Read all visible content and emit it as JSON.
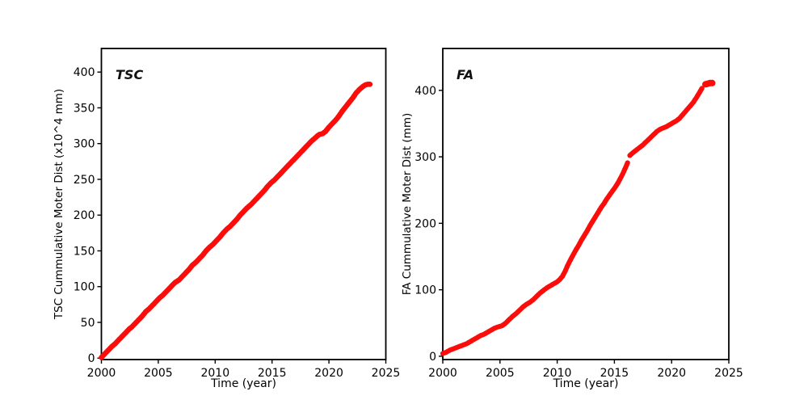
{
  "figure": {
    "background": "#ffffff",
    "axis_color": "#000000",
    "text_color": "#000000"
  },
  "chart_data": [
    {
      "type": "scatter",
      "title": "TSC",
      "xlabel": "Time (year)",
      "ylabel": "TSC Cummulative Moter Dist (x10^4 mm)",
      "color": "#fa0d0a",
      "grid": false,
      "legend": null,
      "xlim": [
        2000,
        2025
      ],
      "ylim": [
        -2,
        433
      ],
      "xticks": [
        2000,
        2005,
        2010,
        2015,
        2020,
        2025
      ],
      "yticks": [
        0,
        50,
        100,
        150,
        200,
        250,
        300,
        350,
        400
      ],
      "series": [
        {
          "name": "TSC",
          "segments": [
            {
              "marker_px": 6.6,
              "points": [
                [
                  2000.0,
                  1
                ],
                [
                  2000.3,
                  6
                ],
                [
                  2000.6,
                  11
                ],
                [
                  2000.9,
                  16
                ],
                [
                  2001.2,
                  20
                ],
                [
                  2001.5,
                  25
                ],
                [
                  2001.8,
                  30
                ],
                [
                  2002.1,
                  35
                ],
                [
                  2002.4,
                  40
                ],
                [
                  2002.7,
                  44
                ],
                [
                  2003.0,
                  49
                ],
                [
                  2003.3,
                  54
                ],
                [
                  2003.6,
                  59
                ],
                [
                  2003.9,
                  65
                ],
                [
                  2004.2,
                  69
                ],
                [
                  2004.5,
                  74
                ],
                [
                  2004.8,
                  79
                ],
                [
                  2005.1,
                  84
                ],
                [
                  2005.4,
                  88
                ],
                [
                  2005.7,
                  93
                ],
                [
                  2006.0,
                  98
                ],
                [
                  2006.3,
                  103
                ],
                [
                  2006.5,
                  106
                ],
                [
                  2006.8,
                  109
                ],
                [
                  2007.1,
                  114
                ],
                [
                  2007.4,
                  119
                ],
                [
                  2007.7,
                  124
                ],
                [
                  2008.0,
                  130
                ],
                [
                  2008.3,
                  134
                ],
                [
                  2008.6,
                  139
                ],
                [
                  2008.9,
                  144
                ],
                [
                  2009.2,
                  150
                ],
                [
                  2009.5,
                  155
                ],
                [
                  2009.8,
                  159
                ],
                [
                  2010.1,
                  164
                ],
                [
                  2010.4,
                  169
                ],
                [
                  2010.7,
                  175
                ],
                [
                  2011.0,
                  180
                ],
                [
                  2011.3,
                  184
                ],
                [
                  2011.6,
                  189
                ],
                [
                  2011.9,
                  194
                ],
                [
                  2012.2,
                  200
                ],
                [
                  2012.5,
                  205
                ],
                [
                  2012.8,
                  210
                ],
                [
                  2013.1,
                  214
                ],
                [
                  2013.4,
                  219
                ],
                [
                  2013.7,
                  224
                ],
                [
                  2014.0,
                  229
                ],
                [
                  2014.3,
                  234
                ],
                [
                  2014.6,
                  240
                ],
                [
                  2014.9,
                  245
                ],
                [
                  2015.2,
                  249
                ],
                [
                  2015.5,
                  254
                ],
                [
                  2015.8,
                  259
                ],
                [
                  2016.1,
                  264
                ],
                [
                  2016.4,
                  269
                ],
                [
                  2016.7,
                  274
                ],
                [
                  2017.0,
                  279
                ],
                [
                  2017.3,
                  284
                ],
                [
                  2017.6,
                  289
                ],
                [
                  2017.9,
                  294
                ],
                [
                  2018.2,
                  299
                ],
                [
                  2018.5,
                  304
                ],
                [
                  2018.8,
                  308
                ],
                [
                  2019.0,
                  311
                ],
                [
                  2019.2,
                  313
                ],
                [
                  2019.45,
                  314
                ],
                [
                  2019.7,
                  317
                ],
                [
                  2020.0,
                  323
                ],
                [
                  2020.3,
                  328
                ],
                [
                  2020.6,
                  333
                ],
                [
                  2020.9,
                  339
                ],
                [
                  2021.2,
                  346
                ],
                [
                  2021.5,
                  352
                ],
                [
                  2021.8,
                  358
                ],
                [
                  2022.1,
                  364
                ],
                [
                  2022.4,
                  371
                ],
                [
                  2022.7,
                  376
                ],
                [
                  2023.0,
                  380
                ],
                [
                  2023.2,
                  382
                ],
                [
                  2023.4,
                  383
                ],
                [
                  2023.6,
                  383
                ]
              ]
            }
          ]
        }
      ]
    },
    {
      "type": "scatter",
      "title": "FA",
      "xlabel": "Time (year)",
      "ylabel": "FA Cummulative Moter Dist (mm)",
      "color": "#fa0d0a",
      "grid": false,
      "legend": null,
      "xlim": [
        2000,
        2025
      ],
      "ylim": [
        -5,
        463
      ],
      "xticks": [
        2000,
        2005,
        2010,
        2015,
        2020,
        2025
      ],
      "yticks": [
        0,
        100,
        200,
        300,
        400
      ],
      "series": [
        {
          "name": "FA",
          "segments": [
            {
              "marker_px": 6.2,
              "points": [
                [
                  2000.0,
                  4
                ],
                [
                  2000.3,
                  6
                ],
                [
                  2000.6,
                  9
                ],
                [
                  2000.9,
                  11
                ],
                [
                  2001.2,
                  13
                ],
                [
                  2001.5,
                  15
                ],
                [
                  2001.8,
                  17
                ],
                [
                  2002.1,
                  19
                ],
                [
                  2002.4,
                  22
                ],
                [
                  2002.7,
                  25
                ],
                [
                  2003.0,
                  28
                ],
                [
                  2003.3,
                  31
                ],
                [
                  2003.6,
                  33
                ],
                [
                  2003.9,
                  36
                ],
                [
                  2004.2,
                  39
                ],
                [
                  2004.5,
                  42
                ],
                [
                  2004.8,
                  44
                ],
                [
                  2005.0,
                  45
                ],
                [
                  2005.2,
                  46
                ],
                [
                  2005.5,
                  50
                ],
                [
                  2005.8,
                  55
                ],
                [
                  2006.1,
                  60
                ],
                [
                  2006.4,
                  64
                ],
                [
                  2006.7,
                  69
                ],
                [
                  2007.0,
                  74
                ],
                [
                  2007.3,
                  78
                ],
                [
                  2007.6,
                  81
                ],
                [
                  2007.9,
                  85
                ],
                [
                  2008.2,
                  90
                ],
                [
                  2008.5,
                  95
                ],
                [
                  2008.8,
                  99
                ],
                [
                  2009.1,
                  103
                ],
                [
                  2009.4,
                  106
                ],
                [
                  2009.7,
                  109
                ],
                [
                  2010.0,
                  112
                ],
                [
                  2010.2,
                  115
                ],
                [
                  2010.45,
                  120
                ],
                [
                  2010.7,
                  128
                ],
                [
                  2010.9,
                  136
                ],
                [
                  2011.1,
                  143
                ],
                [
                  2011.35,
                  151
                ],
                [
                  2011.6,
                  159
                ],
                [
                  2011.85,
                  166
                ],
                [
                  2012.1,
                  174
                ],
                [
                  2012.35,
                  181
                ],
                [
                  2012.6,
                  188
                ],
                [
                  2012.85,
                  196
                ],
                [
                  2013.1,
                  203
                ],
                [
                  2013.35,
                  210
                ],
                [
                  2013.6,
                  217
                ],
                [
                  2013.85,
                  224
                ],
                [
                  2014.1,
                  230
                ],
                [
                  2014.35,
                  237
                ],
                [
                  2014.6,
                  243
                ],
                [
                  2014.85,
                  249
                ],
                [
                  2015.1,
                  255
                ],
                [
                  2015.35,
                  262
                ],
                [
                  2015.6,
                  270
                ],
                [
                  2015.85,
                  279
                ],
                [
                  2016.05,
                  287
                ],
                [
                  2016.15,
                  291
                ]
              ]
            },
            {
              "marker_px": 6.2,
              "points": [
                [
                  2016.35,
                  302
                ],
                [
                  2016.6,
                  306
                ],
                [
                  2016.9,
                  310
                ],
                [
                  2017.2,
                  314
                ],
                [
                  2017.5,
                  318
                ],
                [
                  2017.8,
                  323
                ],
                [
                  2018.1,
                  328
                ],
                [
                  2018.4,
                  333
                ],
                [
                  2018.7,
                  338
                ],
                [
                  2018.95,
                  341
                ],
                [
                  2019.2,
                  343
                ],
                [
                  2019.5,
                  345
                ],
                [
                  2019.8,
                  348
                ],
                [
                  2020.1,
                  351
                ],
                [
                  2020.4,
                  354
                ],
                [
                  2020.7,
                  358
                ],
                [
                  2021.0,
                  364
                ],
                [
                  2021.3,
                  370
                ],
                [
                  2021.6,
                  376
                ],
                [
                  2021.9,
                  382
                ],
                [
                  2022.2,
                  390
                ],
                [
                  2022.45,
                  397
                ],
                [
                  2022.65,
                  403
                ]
              ]
            },
            {
              "marker_px": 8.0,
              "points": [
                [
                  2022.95,
                  409
                ],
                [
                  2023.15,
                  410
                ],
                [
                  2023.35,
                  411
                ],
                [
                  2023.55,
                  411
                ]
              ]
            }
          ]
        }
      ]
    }
  ]
}
